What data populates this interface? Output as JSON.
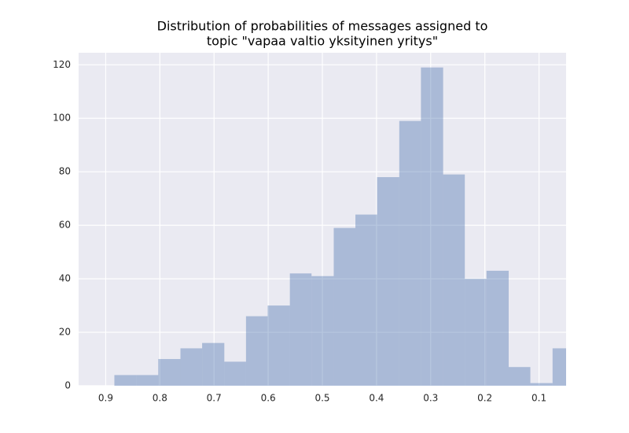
{
  "chart_data": {
    "type": "histogram",
    "title": [
      "Distribution of probabilities of messages assigned to",
      "topic \"vapaa valtio yksityinen yritys\""
    ],
    "bins": [
      0.035,
      0.075,
      0.116,
      0.156,
      0.197,
      0.237,
      0.277,
      0.318,
      0.358,
      0.399,
      0.439,
      0.479,
      0.52,
      0.56,
      0.601,
      0.641,
      0.681,
      0.722,
      0.762,
      0.803,
      0.843,
      0.884
    ],
    "counts": [
      14,
      1,
      7,
      43,
      40,
      79,
      119,
      99,
      78,
      64,
      59,
      41,
      42,
      30,
      26,
      9,
      16,
      14,
      10,
      4,
      4
    ],
    "color": "#4c72b0",
    "opacity": 0.4,
    "xlim": [
      0.95,
      0.05
    ],
    "xticks": [
      0.9,
      0.8,
      0.7,
      0.6,
      0.5,
      0.4,
      0.3,
      0.2,
      0.1
    ],
    "ylim": [
      0,
      124.5
    ],
    "yticks": [
      0,
      20,
      40,
      60,
      80,
      100,
      120
    ],
    "grid": true,
    "background": "#eaeaf2"
  }
}
